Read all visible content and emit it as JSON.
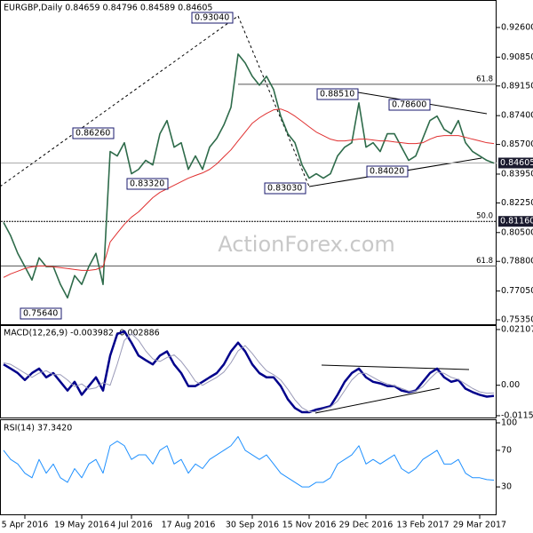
{
  "title": "EURGBP,Daily  0.84659 0.84796 0.84589 0.84605",
  "watermark": "ActionForex.com",
  "annotations": [
    "0.93040",
    "0.86260",
    "0.83320",
    "0.75640",
    "0.83030",
    "0.88510",
    "0.84020",
    "0.78600"
  ],
  "chart_data": [
    {
      "type": "line",
      "categories": [
        null,
        null,
        null,
        "5 Apr 2016",
        null,
        null,
        null,
        null,
        null,
        null,
        null,
        "19 May 2016",
        null,
        null,
        null,
        null,
        null,
        null,
        "4 Jul 2016",
        null,
        null,
        null,
        null,
        null,
        null,
        null,
        "17 Aug 2016",
        null,
        null,
        null,
        null,
        null,
        null,
        null,
        null,
        "30 Sep 2016",
        null,
        null,
        null,
        null,
        null,
        null,
        null,
        "15 Nov 2016",
        null,
        null,
        null,
        null,
        null,
        null,
        null,
        "29 Dec 2016",
        null,
        null,
        null,
        null,
        null,
        null,
        null,
        "13 Feb 2017",
        null,
        null,
        null,
        null,
        null,
        null,
        null,
        "29 Mar 2017",
        null,
        null
      ],
      "series": [
        {
          "name": "EURGBP",
          "color": "#2e6b4a",
          "values": [
            0.811,
            0.8031,
            0.7927,
            0.7849,
            0.777,
            0.7901,
            0.7849,
            0.7849,
            0.7744,
            0.7665,
            0.7796,
            0.7744,
            0.7849,
            0.7927,
            0.7744,
            0.8528,
            0.8502,
            0.858,
            0.8397,
            0.8423,
            0.8476,
            0.8449,
            0.8633,
            0.8711,
            0.8554,
            0.858,
            0.8423,
            0.8502,
            0.8423,
            0.8554,
            0.8606,
            0.8685,
            0.8789,
            0.9103,
            0.9051,
            0.8972,
            0.892,
            0.8972,
            0.8894,
            0.8737,
            0.8633,
            0.858,
            0.8449,
            0.8371,
            0.8397,
            0.8371,
            0.8397,
            0.8502,
            0.8554,
            0.858,
            0.8815,
            0.8554,
            0.858,
            0.8528,
            0.8633,
            0.8633,
            0.8554,
            0.8476,
            0.8502,
            0.8606,
            0.8711,
            0.8737,
            0.8659,
            0.8633,
            0.8711,
            0.858,
            0.8528,
            0.8502,
            0.8476,
            0.846
          ]
        },
        {
          "name": "MA",
          "color": "#e03030",
          "values": [
            0.7785,
            0.7806,
            0.7822,
            0.7838,
            0.7848,
            0.7853,
            0.7853,
            0.7848,
            0.7843,
            0.7838,
            0.7832,
            0.7827,
            0.7827,
            0.7832,
            0.7848,
            0.7994,
            0.8047,
            0.8099,
            0.8141,
            0.8172,
            0.8214,
            0.8256,
            0.8287,
            0.8308,
            0.8329,
            0.835,
            0.8371,
            0.8387,
            0.8402,
            0.8423,
            0.8455,
            0.8497,
            0.8538,
            0.8591,
            0.8643,
            0.8695,
            0.8727,
            0.8753,
            0.8774,
            0.8779,
            0.8763,
            0.8737,
            0.8706,
            0.8674,
            0.8643,
            0.8622,
            0.8601,
            0.8591,
            0.8591,
            0.8596,
            0.8601,
            0.8601,
            0.8596,
            0.8591,
            0.8591,
            0.8585,
            0.858,
            0.8575,
            0.8575,
            0.858,
            0.8601,
            0.8617,
            0.8622,
            0.8622,
            0.8622,
            0.8612,
            0.8601,
            0.8591,
            0.858,
            0.8575
          ]
        }
      ],
      "ylim": [
        0.7509,
        0.9417
      ],
      "yticks": [
        {
          "value": 0.926,
          "label": "0.92600"
        },
        {
          "value": 0.9085,
          "label": "0.90850"
        },
        {
          "value": 0.8915,
          "label": "0.89150"
        },
        {
          "value": 0.874,
          "label": "0.87400"
        },
        {
          "value": 0.857,
          "label": "0.85700"
        },
        {
          "value": 0.8395,
          "label": "0.83950"
        },
        {
          "value": 0.8225,
          "label": "0.82250"
        },
        {
          "value": 0.805,
          "label": "0.80500"
        },
        {
          "value": 0.788,
          "label": "0.78800"
        },
        {
          "value": 0.7705,
          "label": "0.77050"
        },
        {
          "value": 0.7535,
          "label": "0.75350"
        }
      ],
      "levels": [
        {
          "label": "61.8",
          "value": 0.8925
        },
        {
          "label": "50.0",
          "value": 0.8116
        },
        {
          "label": "61.8",
          "value": 0.7853
        }
      ],
      "price_labels": [
        {
          "label": "0.84605",
          "value": 0.84605
        },
        {
          "label": "0.81160",
          "value": 0.8116
        }
      ]
    },
    {
      "type": "line",
      "title": "MACD(12,26,9) -0.003982 -0.002886",
      "series": [
        {
          "name": "MACD",
          "color": "#00008b",
          "values": [
            0.0079,
            0.0063,
            0.0046,
            0.002,
            0.0046,
            0.0063,
            0.003,
            0.0046,
            0.0013,
            -0.002,
            0.0013,
            -0.0036,
            -0.0003,
            0.003,
            -0.002,
            0.0112,
            0.0194,
            0.0204,
            0.0161,
            0.0112,
            0.0095,
            0.0079,
            0.0112,
            0.0128,
            0.0079,
            0.0046,
            -0.0003,
            -0.0003,
            0.0013,
            0.003,
            0.0046,
            0.0079,
            0.0128,
            0.0161,
            0.0128,
            0.0079,
            0.0046,
            0.003,
            0.003,
            -0.0003,
            -0.0053,
            -0.0086,
            -0.0102,
            -0.0102,
            -0.0092,
            -0.0086,
            -0.0079,
            -0.0036,
            0.0013,
            0.0046,
            0.0063,
            0.003,
            0.0013,
            0.0007,
            -0.0003,
            -0.0003,
            -0.002,
            -0.0026,
            -0.002,
            0.0013,
            0.0046,
            0.0063,
            0.003,
            0.0013,
            0.002,
            -0.0013,
            -0.0026,
            -0.0036,
            -0.0043,
            -0.004
          ]
        },
        {
          "name": "Signal",
          "color": "#9a9ab8",
          "values": [
            0.0085,
            0.0079,
            0.0063,
            0.0046,
            0.003,
            0.0046,
            0.0055,
            0.004,
            0.004,
            0.002,
            -0.0005,
            0.0005,
            -0.0015,
            -0.001,
            0.001,
            0.0,
            0.008,
            0.017,
            0.0195,
            0.017,
            0.013,
            0.01,
            0.009,
            0.0105,
            0.0115,
            0.009,
            0.0055,
            0.0015,
            0.0,
            0.0015,
            0.003,
            0.005,
            0.0085,
            0.013,
            0.015,
            0.012,
            0.0085,
            0.0055,
            0.004,
            0.002,
            -0.0015,
            -0.0055,
            -0.0085,
            -0.01,
            -0.01,
            -0.009,
            -0.0082,
            -0.006,
            -0.002,
            0.002,
            0.0045,
            0.0045,
            0.003,
            0.0015,
            0.0005,
            -0.0002,
            -0.0012,
            -0.0022,
            -0.0022,
            -0.0005,
            0.0025,
            0.005,
            0.0045,
            0.003,
            0.0022,
            0.0005,
            -0.0012,
            -0.0025,
            -0.003,
            -0.0029
          ]
        }
      ],
      "ylim": [
        -0.0122,
        0.0224
      ],
      "yticks": [
        0.021074,
        {
          "value": 0,
          "label": "0.00"
        },
        -0.011507
      ]
    },
    {
      "type": "line",
      "title": "RSI(14) 37.3420",
      "series": [
        {
          "name": "RSI",
          "color": "#1e90ff",
          "values": [
            70,
            60,
            55,
            45,
            40,
            60,
            45,
            55,
            40,
            35,
            50,
            40,
            55,
            60,
            45,
            75,
            80,
            75,
            60,
            65,
            65,
            55,
            70,
            75,
            55,
            60,
            45,
            55,
            50,
            60,
            65,
            70,
            75,
            85,
            70,
            65,
            60,
            65,
            55,
            45,
            40,
            35,
            30,
            30,
            35,
            35,
            40,
            55,
            60,
            65,
            75,
            55,
            60,
            55,
            60,
            65,
            50,
            45,
            50,
            60,
            65,
            70,
            55,
            55,
            60,
            45,
            40,
            40,
            38,
            37.342
          ]
        }
      ],
      "ylim": [
        0,
        100
      ],
      "yticks": [
        100,
        70,
        30
      ]
    }
  ]
}
